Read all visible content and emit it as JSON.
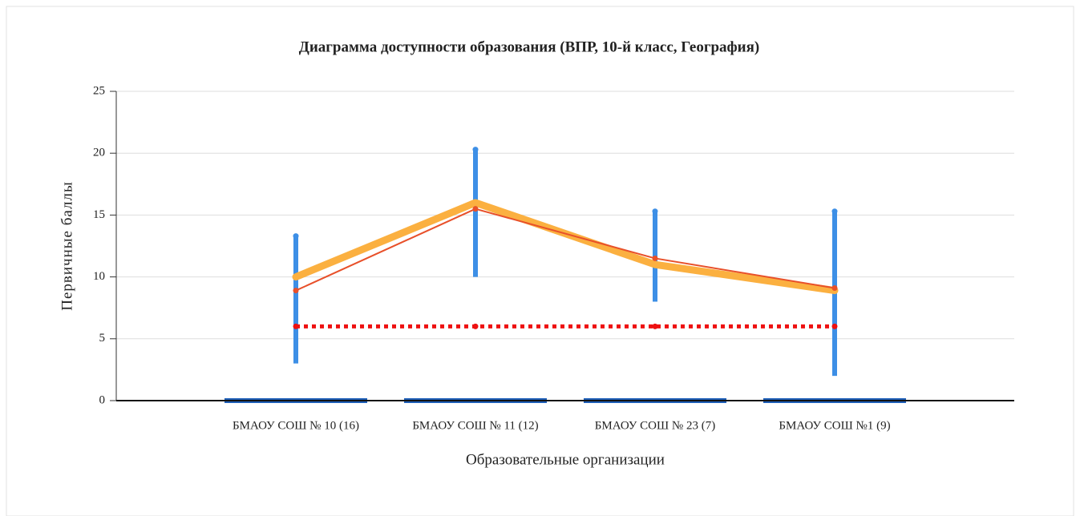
{
  "chart_data": {
    "type": "line",
    "title": "Диаграмма доступности образования (ВПР, 10-й класс, География)",
    "x_label": "Образовательные организации",
    "y_label": "Первичные баллы",
    "categories": [
      "БМАОУ СОШ № 10 (16)",
      "БМАОУ СОШ № 11 (12)",
      "БМАОУ СОШ № 23 (7)",
      "БМАОУ СОШ №1 (9)"
    ],
    "ylim": [
      0,
      25
    ],
    "yticks": [
      0,
      5,
      10,
      15,
      20,
      25
    ],
    "grid": true,
    "series": [
      {
        "color": "#fbb040",
        "width": 9,
        "values": [
          10,
          16,
          11,
          8.9
        ]
      },
      {
        "color": "#e8502a",
        "width": 2,
        "markers": true,
        "values": [
          8.9,
          15.5,
          11.5,
          9.1
        ]
      },
      {
        "color": "#ee1111",
        "width": 5,
        "dashed": true,
        "values": [
          6,
          6,
          6,
          6
        ]
      }
    ],
    "ranges": {
      "color": "#3d8fe6",
      "low": [
        3,
        10,
        8,
        2
      ],
      "high": [
        13.3,
        20.3,
        15.3,
        15.3
      ]
    },
    "bars": {
      "color": "#1f5fb8",
      "values": [
        0,
        0,
        0,
        0
      ]
    }
  }
}
